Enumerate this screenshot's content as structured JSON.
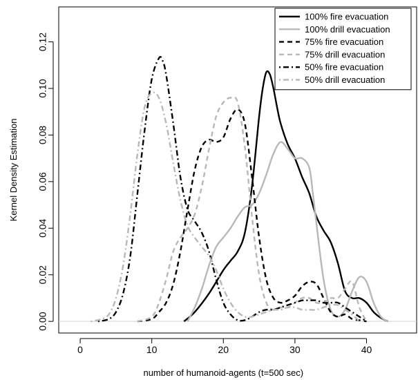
{
  "chart_data": {
    "type": "line",
    "title": "",
    "xlabel": "number of humanoid-agents (t=500 sec)",
    "ylabel": "Kernel Density Estimation",
    "xlim": [
      -3,
      47
    ],
    "ylim": [
      -0.005,
      0.135
    ],
    "x_ticks": [
      "0",
      "10",
      "20",
      "30",
      "40"
    ],
    "y_ticks": [
      "0.00",
      "0.02",
      "0.04",
      "0.06",
      "0.08",
      "0.10",
      "0.12"
    ],
    "legend_position": "top-right",
    "series": [
      {
        "name": "100% fire evacuation",
        "color": "#000000",
        "style": "solid",
        "x": [
          14.5,
          16,
          18,
          20,
          21,
          22,
          23,
          24,
          25,
          25.5,
          26,
          26.5,
          27,
          27.5,
          28,
          29,
          30,
          31,
          32,
          33,
          34,
          35,
          36,
          37,
          38,
          39,
          40,
          41,
          42,
          43
        ],
        "y": [
          0,
          0.004,
          0.012,
          0.022,
          0.026,
          0.03,
          0.038,
          0.058,
          0.088,
          0.1,
          0.107,
          0.106,
          0.1,
          0.092,
          0.085,
          0.076,
          0.07,
          0.062,
          0.055,
          0.045,
          0.039,
          0.034,
          0.025,
          0.013,
          0.01,
          0.01,
          0.008,
          0.004,
          0.0015,
          0
        ]
      },
      {
        "name": "100% drill evacuation",
        "color": "#b8b8b8",
        "style": "solid",
        "x": [
          15,
          16,
          17,
          18,
          19,
          20,
          21,
          22,
          23,
          24,
          25,
          26,
          27,
          28,
          29,
          30,
          31,
          32,
          32.5,
          33,
          34,
          35,
          36,
          37,
          38,
          39,
          40,
          41,
          42,
          43
        ],
        "y": [
          0,
          0.006,
          0.014,
          0.024,
          0.032,
          0.036,
          0.04,
          0.045,
          0.049,
          0.05,
          0.055,
          0.063,
          0.072,
          0.077,
          0.074,
          0.07,
          0.07,
          0.066,
          0.055,
          0.042,
          0.018,
          0.005,
          0.002,
          0.005,
          0.013,
          0.019,
          0.017,
          0.008,
          0.002,
          0
        ]
      },
      {
        "name": "75% fire evacuation",
        "color": "#000000",
        "style": "dashed",
        "x": [
          8,
          10,
          11,
          12,
          13,
          14,
          15,
          16,
          17,
          18,
          19,
          20,
          21,
          22,
          23,
          24,
          25,
          26,
          27,
          28,
          29,
          30,
          31,
          32,
          33,
          34,
          35,
          36,
          37,
          38,
          39,
          40
        ],
        "y": [
          0,
          0.001,
          0.004,
          0.008,
          0.016,
          0.03,
          0.048,
          0.065,
          0.075,
          0.078,
          0.077,
          0.079,
          0.087,
          0.091,
          0.085,
          0.062,
          0.036,
          0.018,
          0.01,
          0.008,
          0.009,
          0.011,
          0.015,
          0.017,
          0.016,
          0.01,
          0.004,
          0.002,
          0.003,
          0.001,
          0.0005,
          0
        ]
      },
      {
        "name": "75% drill evacuation",
        "color": "#b8b8b8",
        "style": "dashed",
        "x": [
          8,
          10,
          11,
          12,
          13,
          14,
          15,
          16,
          17,
          18,
          19,
          20,
          21,
          22,
          23,
          24,
          25,
          26,
          27,
          28,
          29,
          30,
          31,
          32,
          33,
          34,
          35,
          36,
          37,
          38,
          39,
          40
        ],
        "y": [
          0,
          0.002,
          0.008,
          0.018,
          0.03,
          0.036,
          0.04,
          0.046,
          0.058,
          0.074,
          0.088,
          0.094,
          0.096,
          0.094,
          0.075,
          0.045,
          0.02,
          0.008,
          0.005,
          0.006,
          0.006,
          0.008,
          0.01,
          0.01,
          0.008,
          0.008,
          0.01,
          0.01,
          0.014,
          0.017,
          0.006,
          0
        ]
      },
      {
        "name": "50% fire evacuation",
        "color": "#000000",
        "style": "dotdash",
        "x": [
          2.5,
          4,
          5,
          6,
          7,
          8,
          9,
          10,
          11,
          11.5,
          12,
          13,
          14,
          15,
          16,
          17,
          18,
          19,
          20,
          21,
          22,
          23,
          24,
          25,
          26,
          27,
          28,
          29,
          30,
          31,
          32,
          33,
          34,
          35,
          36,
          37,
          38,
          39,
          40
        ],
        "y": [
          0,
          0.001,
          0.004,
          0.012,
          0.028,
          0.055,
          0.082,
          0.104,
          0.113,
          0.112,
          0.106,
          0.085,
          0.062,
          0.048,
          0.043,
          0.038,
          0.03,
          0.018,
          0.008,
          0.003,
          0.0005,
          0.0005,
          0.002,
          0.004,
          0.005,
          0.005,
          0.006,
          0.007,
          0.008,
          0.009,
          0.009,
          0.009,
          0.008,
          0.008,
          0.008,
          0.006,
          0.004,
          0.002,
          0
        ]
      },
      {
        "name": "50% drill evacuation",
        "color": "#b8b8b8",
        "style": "dotdash",
        "x": [
          1.5,
          3,
          4,
          5,
          6,
          7,
          8,
          9,
          10,
          11,
          12,
          13,
          14,
          15,
          16,
          17,
          18,
          19,
          20,
          21,
          22,
          23,
          24,
          25,
          26,
          27,
          28,
          29,
          30,
          31,
          32,
          33,
          34,
          35,
          36,
          37,
          38,
          39
        ],
        "y": [
          0,
          0.001,
          0.003,
          0.01,
          0.024,
          0.046,
          0.072,
          0.092,
          0.098,
          0.096,
          0.085,
          0.068,
          0.052,
          0.041,
          0.036,
          0.032,
          0.028,
          0.022,
          0.014,
          0.008,
          0.004,
          0.002,
          0.002,
          0.003,
          0.004,
          0.005,
          0.005,
          0.006,
          0.006,
          0.005,
          0.005,
          0.005,
          0.006,
          0.007,
          0.007,
          0.005,
          0.003,
          0
        ]
      }
    ]
  }
}
